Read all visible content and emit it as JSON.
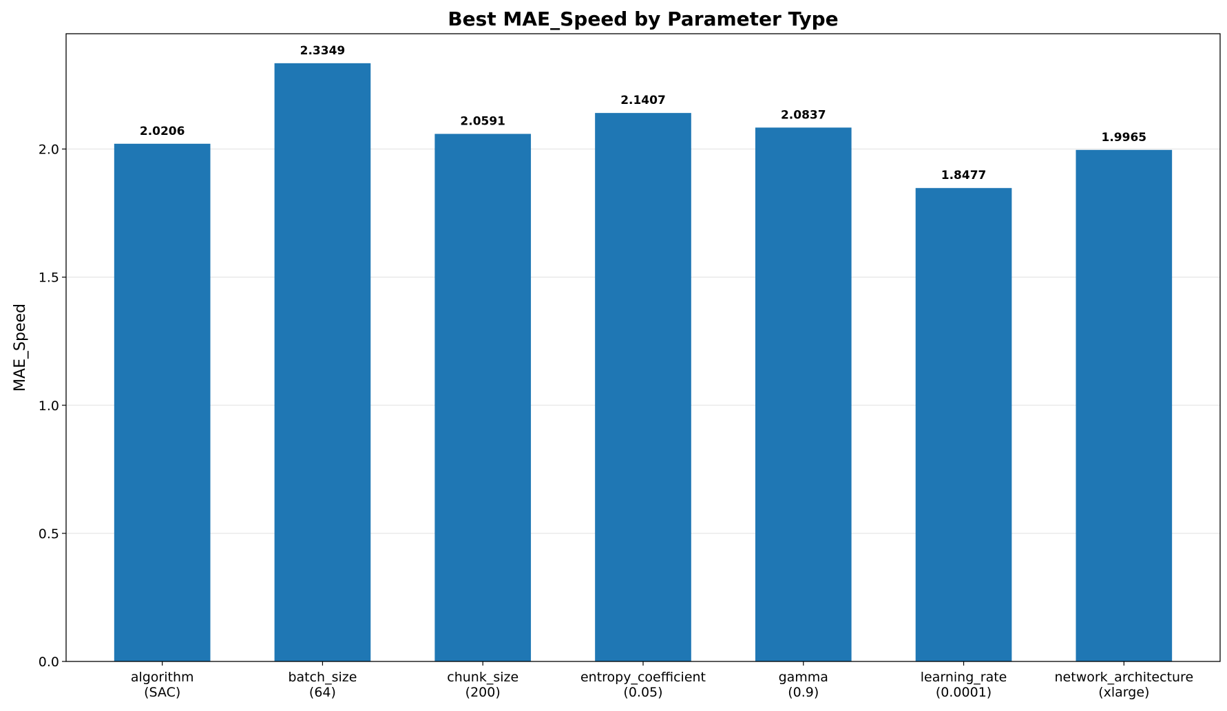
{
  "chart_data": {
    "type": "bar",
    "title": "Best MAE_Speed by Parameter Type",
    "xlabel": "",
    "ylabel": "MAE_Speed",
    "categories": [
      [
        "algorithm",
        "(SAC)"
      ],
      [
        "batch_size",
        "(64)"
      ],
      [
        "chunk_size",
        "(200)"
      ],
      [
        "entropy_coefficient",
        "(0.05)"
      ],
      [
        "gamma",
        "(0.9)"
      ],
      [
        "learning_rate",
        "(0.0001)"
      ],
      [
        "network_architecture",
        "(xlarge)"
      ]
    ],
    "values": [
      2.0206,
      2.3349,
      2.0591,
      2.1407,
      2.0837,
      1.8477,
      1.9965
    ],
    "value_labels": [
      "2.0206",
      "2.3349",
      "2.0591",
      "2.1407",
      "2.0837",
      "1.8477",
      "1.9965"
    ],
    "ylim": [
      0,
      2.45
    ],
    "yticks": [
      0.0,
      0.5,
      1.0,
      1.5,
      2.0
    ],
    "ytick_labels": [
      "0.0",
      "0.5",
      "1.0",
      "1.5",
      "2.0"
    ],
    "grid": "horizontal",
    "bar_color": "#1f77b4",
    "grid_color": "#e6e6e6"
  }
}
